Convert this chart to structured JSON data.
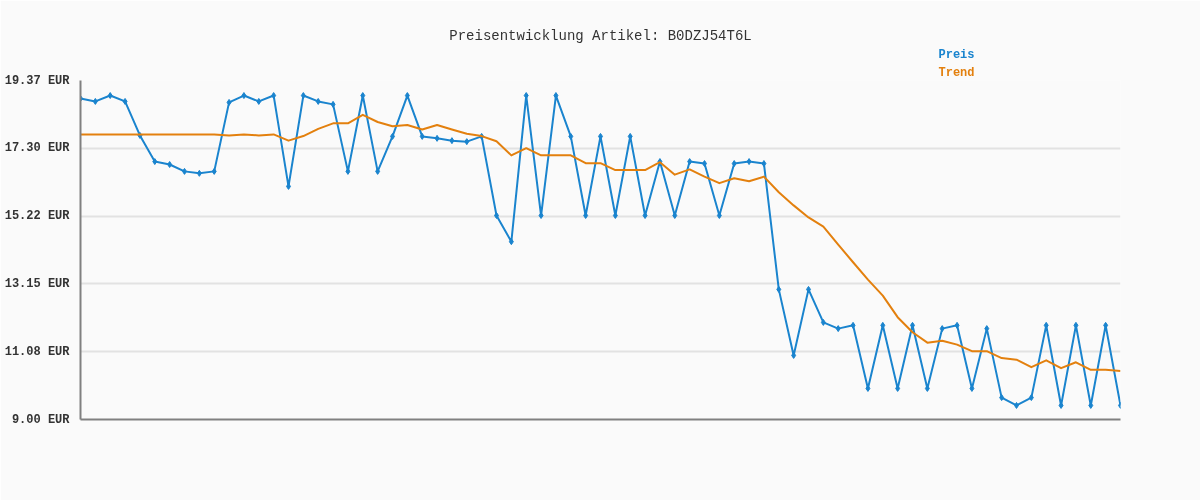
{
  "chart_data": {
    "type": "line",
    "title": "Preisentwicklung Artikel: B0DZJ54T6L",
    "categories": [
      null,
      null,
      null,
      null,
      null,
      null,
      null,
      null,
      null,
      null,
      null,
      null,
      null,
      null,
      null,
      null,
      null,
      null,
      null,
      null,
      null,
      null,
      null,
      null,
      null,
      null,
      null,
      null,
      null,
      null,
      null,
      null,
      null,
      null,
      null,
      null,
      null,
      null,
      null,
      null,
      null,
      null,
      null,
      null,
      null,
      null,
      null,
      null,
      null,
      null,
      null,
      null,
      null,
      null,
      null,
      null,
      null,
      null,
      null,
      null,
      null,
      null,
      null,
      null,
      null,
      null,
      null,
      null,
      null,
      null,
      null
    ],
    "series": [
      {
        "name": "Preis",
        "color": "#1a84ce",
        "marker": "diamond",
        "values": [
          18.82,
          18.73,
          18.91,
          18.73,
          17.69,
          16.89,
          16.8,
          16.59,
          16.53,
          16.59,
          18.7,
          18.91,
          18.73,
          18.91,
          16.13,
          18.91,
          18.73,
          18.64,
          16.59,
          18.91,
          16.59,
          17.66,
          18.91,
          17.66,
          17.6,
          17.53,
          17.5,
          17.66,
          15.24,
          14.44,
          18.91,
          15.24,
          18.91,
          17.66,
          15.24,
          17.66,
          15.24,
          17.66,
          15.24,
          16.89,
          15.24,
          16.89,
          16.83,
          15.24,
          16.83,
          16.89,
          16.83,
          12.98,
          10.96,
          12.98,
          11.97,
          11.78,
          11.88,
          9.95,
          11.88,
          9.95,
          11.88,
          9.95,
          11.78,
          11.88,
          9.95,
          11.78,
          9.67,
          9.43,
          9.67,
          11.88,
          9.43,
          11.88,
          9.43,
          11.88,
          9.43
        ]
      },
      {
        "name": "Trend",
        "color": "#e3800e",
        "marker": "none",
        "values": [
          17.72,
          17.72,
          17.72,
          17.72,
          17.72,
          17.72,
          17.72,
          17.72,
          17.72,
          17.72,
          17.69,
          17.72,
          17.69,
          17.72,
          17.53,
          17.67,
          17.89,
          18.06,
          18.06,
          18.32,
          18.1,
          17.97,
          18.01,
          17.87,
          18.01,
          17.87,
          17.74,
          17.67,
          17.51,
          17.08,
          17.3,
          17.08,
          17.08,
          17.08,
          16.84,
          16.84,
          16.63,
          16.63,
          16.63,
          16.87,
          16.49,
          16.65,
          16.43,
          16.23,
          16.38,
          16.29,
          16.43,
          15.95,
          15.55,
          15.18,
          14.9,
          14.35,
          13.81,
          13.28,
          12.79,
          12.13,
          11.67,
          11.35,
          11.41,
          11.29,
          11.09,
          11.09,
          10.88,
          10.83,
          10.6,
          10.81,
          10.57,
          10.75,
          10.52,
          10.52,
          10.48
        ]
      }
    ],
    "ylim": [
      9.0,
      19.37
    ],
    "yticks": [
      {
        "value": 9.0,
        "label": "9.00 EUR"
      },
      {
        "value": 11.08,
        "label": "11.08 EUR"
      },
      {
        "value": 13.15,
        "label": "13.15 EUR"
      },
      {
        "value": 15.22,
        "label": "15.22 EUR"
      },
      {
        "value": 17.3,
        "label": "17.30 EUR"
      },
      {
        "value": 19.37,
        "label": "19.37 EUR"
      }
    ],
    "grid": "y",
    "tick_labels": "y",
    "line_style": "solid"
  }
}
